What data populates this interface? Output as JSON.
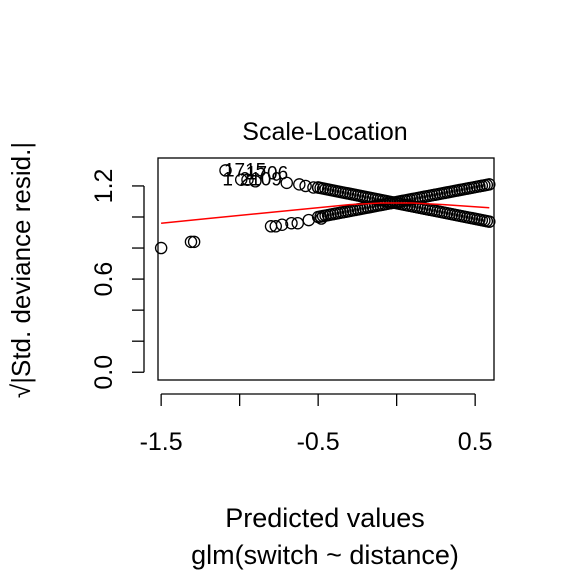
{
  "chart_data": {
    "type": "scatter",
    "title": "Scale-Location",
    "xlabel": "Predicted values",
    "subtitle": "glm(switch ~ distance)",
    "ylabel_sqrt_symbol": "√",
    "ylabel": "|Std. deviance resid.|",
    "xlim": [
      -1.52,
      0.62
    ],
    "ylim": [
      -0.05,
      1.38
    ],
    "xticks": [
      -1.5,
      -1.0,
      -0.5,
      0.0,
      0.5
    ],
    "xtick_labels": [
      "-1.5",
      "",
      "-0.5",
      "",
      "0.5"
    ],
    "yticks": [
      0.0,
      0.2,
      0.4,
      0.6,
      0.8,
      1.0,
      1.2
    ],
    "ytick_labels": [
      "0.0",
      "",
      "",
      "0.6",
      "",
      "",
      "1.2"
    ],
    "grid": false,
    "series": [
      {
        "points": [
          {
            "x": -1.5,
            "y": 0.8
          },
          {
            "x": -1.31,
            "y": 0.84
          },
          {
            "x": -1.29,
            "y": 0.84
          },
          {
            "x": -1.09,
            "y": 1.3
          },
          {
            "x": -0.99,
            "y": 1.24
          },
          {
            "x": -0.95,
            "y": 1.24
          },
          {
            "x": -0.9,
            "y": 1.23
          },
          {
            "x": -0.8,
            "y": 0.94
          },
          {
            "x": -0.77,
            "y": 0.94
          },
          {
            "x": -0.73,
            "y": 0.95
          },
          {
            "x": -0.7,
            "y": 1.22
          },
          {
            "x": -0.67,
            "y": 0.96
          },
          {
            "x": -0.63,
            "y": 0.96
          },
          {
            "x": -0.62,
            "y": 1.21
          },
          {
            "x": -0.58,
            "y": 1.2
          },
          {
            "x": -0.56,
            "y": 0.98
          },
          {
            "x": -0.53,
            "y": 1.19
          },
          {
            "x": -0.5,
            "y": 1.19
          },
          {
            "x": -0.48,
            "y": 0.99
          }
        ],
        "bands": [
          {
            "x0": -0.5,
            "x1": 0.59,
            "y0": 1.19,
            "y1": 0.97,
            "n": 70
          },
          {
            "x0": -0.5,
            "x1": 0.59,
            "y0": 1.0,
            "y1": 1.21,
            "n": 70
          }
        ]
      }
    ],
    "smooth_line": {
      "color": "#ff0000",
      "x": [
        -1.5,
        -1.2,
        -0.9,
        -0.6,
        -0.3,
        -0.1,
        0.1,
        0.3,
        0.59
      ],
      "y": [
        0.96,
        0.99,
        1.02,
        1.05,
        1.08,
        1.09,
        1.09,
        1.08,
        1.06
      ]
    },
    "annotations": [
      {
        "text": "1715",
        "x": -1.1,
        "y": 1.3
      },
      {
        "text": "1706",
        "x": -0.96,
        "y": 1.28
      },
      {
        "text": "2109",
        "x": -1.0,
        "y": 1.24
      },
      {
        "text": "1",
        "x": -1.11,
        "y": 1.24
      }
    ]
  }
}
